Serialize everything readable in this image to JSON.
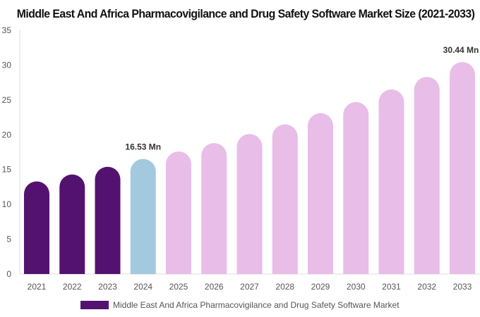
{
  "chart_data": {
    "type": "bar",
    "title": "Middle East And Africa Pharmacovigilance and Drug Safety Software Market Size (2021-2033)",
    "categories": [
      "2021",
      "2022",
      "2023",
      "2024",
      "2025",
      "2026",
      "2027",
      "2028",
      "2029",
      "2030",
      "2031",
      "2032",
      "2033"
    ],
    "series": [
      {
        "name": "Middle East And Africa Pharmacovigilance and Drug Safety Software Market",
        "values": [
          13.3,
          14.3,
          15.4,
          16.53,
          17.6,
          18.8,
          20.1,
          21.5,
          23.1,
          24.7,
          26.5,
          28.3,
          30.44
        ]
      }
    ],
    "data_labels": {
      "3": "16.53 Mn",
      "12": "30.44 Mn"
    },
    "ylim": [
      0,
      35
    ],
    "yticks": [
      0,
      5,
      10,
      15,
      20,
      25,
      30,
      35
    ],
    "grid": false,
    "legend_position": "bottom",
    "colors": {
      "historical": "#541270",
      "current": "#a3c9de",
      "forecast": "#e8bde8"
    },
    "bar_color_groups": [
      "historical",
      "historical",
      "historical",
      "current",
      "forecast",
      "forecast",
      "forecast",
      "forecast",
      "forecast",
      "forecast",
      "forecast",
      "forecast",
      "forecast"
    ]
  }
}
